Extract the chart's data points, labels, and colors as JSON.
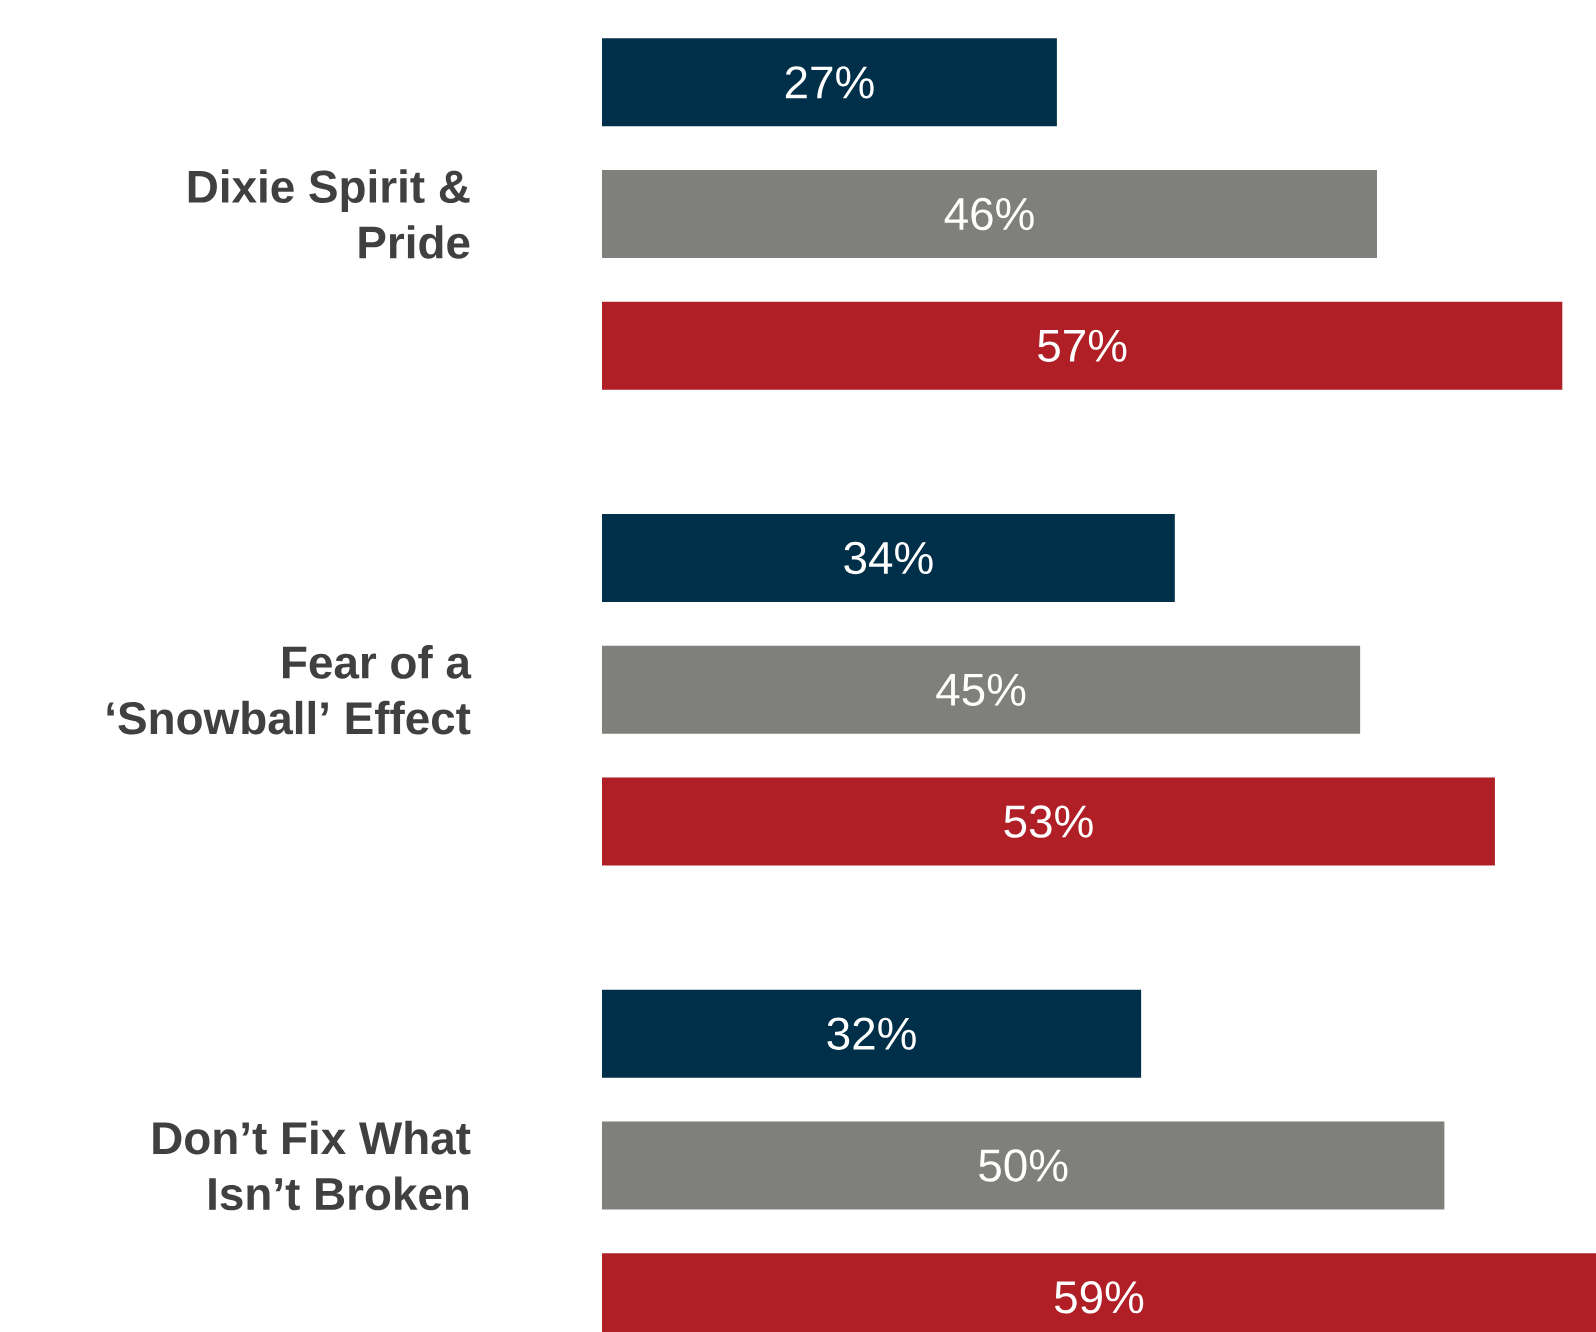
{
  "chart_data": {
    "type": "bar",
    "orientation": "horizontal",
    "categories": [
      "Dixie Spirit & Pride",
      "Fear of a ‘Snowball’ Effect",
      "Don’t Fix What Isn’t Broken"
    ],
    "series": [
      {
        "color": "#003049",
        "values": [
          27,
          34,
          32
        ],
        "value_labels": [
          "27%",
          "34%",
          "32%"
        ]
      },
      {
        "color": "#7f7f7b",
        "values": [
          46,
          45,
          50
        ],
        "value_labels": [
          "46%",
          "45%",
          "50%"
        ]
      },
      {
        "color": "#b01e26",
        "values": [
          57,
          53,
          59
        ],
        "value_labels": [
          "57%",
          "53%",
          "59%"
        ]
      }
    ]
  }
}
